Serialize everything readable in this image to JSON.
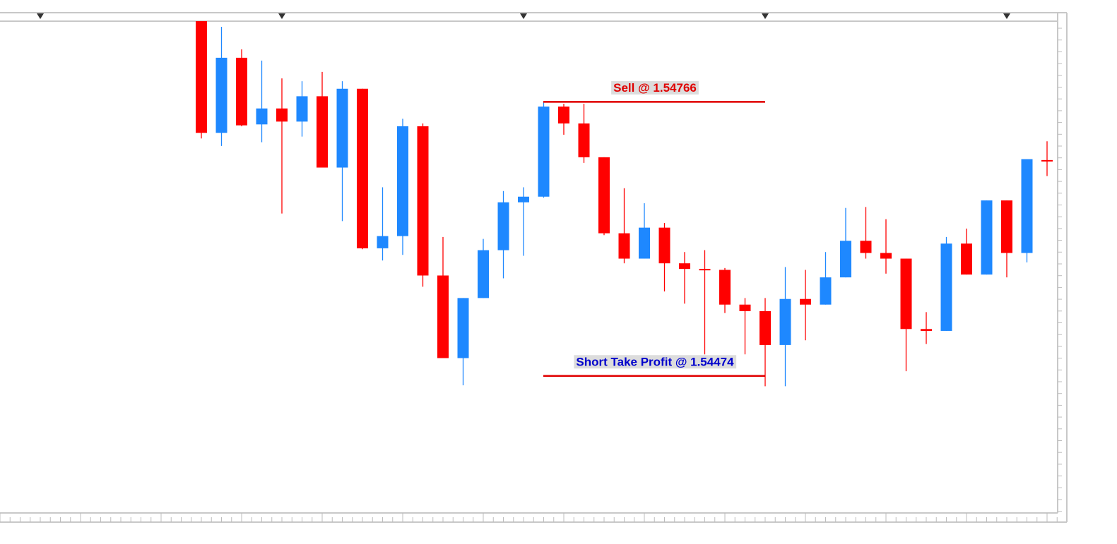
{
  "chart_data": {
    "type": "candlestick",
    "ylim": [
      1.54328,
      1.54852
    ],
    "up_color": "#1e88ff",
    "down_color": "#ff0000",
    "open": [
      1.54852,
      1.54733,
      1.54813,
      1.54742,
      1.54759,
      1.54745,
      1.54772,
      1.54696,
      1.5478,
      1.5461,
      1.54623,
      1.5474,
      1.54581,
      1.54493,
      1.54557,
      1.54608,
      1.54659,
      1.54665,
      1.54761,
      1.54743,
      1.54707,
      1.54626,
      1.54599,
      1.54632,
      1.54594,
      1.54588,
      1.54587,
      1.5455,
      1.54543,
      1.54507,
      1.54556,
      1.5455,
      1.54579,
      1.54618,
      1.54605,
      1.54599,
      1.54524,
      1.54522,
      1.54615,
      1.54582,
      1.54661,
      1.54605,
      1.54704
    ],
    "high": [
      1.54852,
      1.54846,
      1.54822,
      1.5481,
      1.54791,
      1.54788,
      1.54798,
      1.54788,
      1.5478,
      1.54675,
      1.54748,
      1.54743,
      1.54622,
      1.54557,
      1.5462,
      1.54671,
      1.54675,
      1.54766,
      1.54764,
      1.54764,
      1.54707,
      1.54674,
      1.54658,
      1.54637,
      1.54606,
      1.54608,
      1.54589,
      1.54557,
      1.54557,
      1.5459,
      1.54587,
      1.54606,
      1.54653,
      1.54654,
      1.54641,
      1.54599,
      1.54542,
      1.54622,
      1.54631,
      1.54661,
      1.54661,
      1.54705,
      1.54724
    ],
    "low": [
      1.54727,
      1.54719,
      1.5474,
      1.54723,
      1.54647,
      1.54729,
      1.54696,
      1.54639,
      1.54609,
      1.54597,
      1.54603,
      1.54569,
      1.54493,
      1.54464,
      1.54557,
      1.54578,
      1.54602,
      1.54664,
      1.54731,
      1.54701,
      1.54624,
      1.54594,
      1.54599,
      1.54564,
      1.54551,
      1.54497,
      1.54541,
      1.54497,
      1.54463,
      1.54463,
      1.54512,
      1.5455,
      1.54579,
      1.54599,
      1.54583,
      1.54479,
      1.54508,
      1.54522,
      1.54582,
      1.54582,
      1.54579,
      1.54595,
      1.54687
    ],
    "close": [
      1.54733,
      1.54813,
      1.54741,
      1.54759,
      1.54745,
      1.54772,
      1.54696,
      1.5478,
      1.5461,
      1.54623,
      1.5474,
      1.54581,
      1.54493,
      1.54557,
      1.54608,
      1.54659,
      1.54665,
      1.54761,
      1.54743,
      1.54707,
      1.54626,
      1.54599,
      1.54632,
      1.54594,
      1.54588,
      1.54587,
      1.5455,
      1.54543,
      1.54507,
      1.54556,
      1.5455,
      1.54579,
      1.54618,
      1.54605,
      1.54599,
      1.54524,
      1.54522,
      1.54615,
      1.54582,
      1.54661,
      1.54605,
      1.54705,
      1.54703
    ],
    "annotations": [
      {
        "text": "Sell @ 1.54766",
        "value": 1.54766,
        "color": "#e00000",
        "line_color": "#e00000"
      },
      {
        "text": "Short Take Profit @ 1.54474",
        "value": 1.54474,
        "color": "#0000cc",
        "line_color": "#e00000"
      }
    ]
  }
}
